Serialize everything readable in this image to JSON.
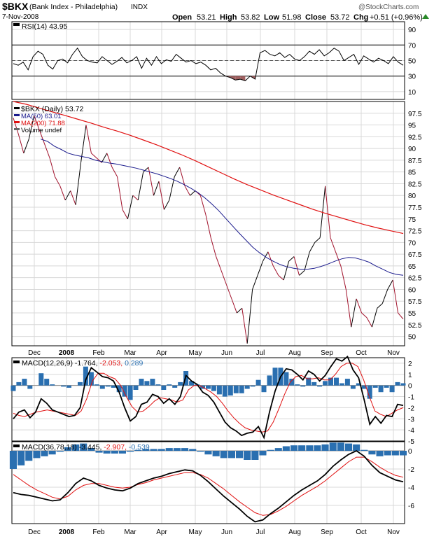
{
  "header": {
    "symbol": "$BKX",
    "name": "(Bank Index - Philadelphia)",
    "exchange": "INDX",
    "date": "7-Nov-2008",
    "brand": "@StockCharts.com",
    "ohlc": {
      "open_label": "Open",
      "open": "53.21",
      "high_label": "High",
      "high": "53.82",
      "low_label": "Low",
      "low": "51.98",
      "close_label": "Close",
      "close": "53.72",
      "chg_label": "Chg",
      "chg": "+0.51 (+0.96%)"
    }
  },
  "colors": {
    "price": "#000000",
    "price_down": "#a0102a",
    "ma50": "#1a1a8c",
    "ma200": "#e01010",
    "macd_signal": "#e01010",
    "histogram": "#2a6fb0",
    "rsi_fill": "#a06060",
    "grid": "#d8d8d8",
    "up_arrow": "#2a8a2a"
  },
  "x_axis": {
    "months": [
      "Dec",
      "2008",
      "Feb",
      "Mar",
      "Apr",
      "May",
      "Jun",
      "Jul",
      "Aug",
      "Sep",
      "Oct",
      "Nov"
    ]
  },
  "chart_data": [
    {
      "type": "line",
      "panel": "rsi",
      "legend": [
        "RSI(14) 43.95"
      ],
      "y_ticks": [
        10,
        30,
        50,
        70,
        90
      ],
      "ylim": [
        0,
        100
      ],
      "levels": [
        30,
        70
      ],
      "series": [
        {
          "name": "RSI(14)",
          "values": [
            46,
            44,
            48,
            38,
            55,
            62,
            58,
            44,
            39,
            50,
            52,
            47,
            58,
            66,
            55,
            50,
            48,
            47,
            55,
            50,
            45,
            49,
            54,
            47,
            50,
            55,
            40,
            53,
            44,
            55,
            46,
            51,
            49,
            58,
            53,
            48,
            50,
            46,
            48,
            44,
            38,
            40,
            34,
            30,
            28,
            25,
            26,
            24,
            30,
            26,
            60,
            63,
            58,
            56,
            60,
            54,
            58,
            52,
            50,
            55,
            62,
            58,
            64,
            56,
            60,
            66,
            62,
            50,
            54,
            58,
            45,
            56,
            52,
            48,
            53,
            50,
            46,
            55,
            48,
            44
          ]
        }
      ]
    },
    {
      "type": "line",
      "panel": "price",
      "legend": [
        "$BKX (Daily) 53.72",
        "MA(50) 63.01",
        "MA(200) 71.88",
        "Volume undef"
      ],
      "y_ticks": [
        50,
        52.5,
        55,
        57.5,
        60,
        62.5,
        65,
        67.5,
        70,
        72.5,
        75,
        77.5,
        80,
        82.5,
        85,
        87.5,
        90,
        92.5,
        95,
        97.5
      ],
      "ylim": [
        48,
        100
      ],
      "series": [
        {
          "name": "$BKX",
          "values": [
            96.5,
            93,
            89,
            92,
            97,
            94,
            91,
            88,
            84,
            82,
            79,
            81,
            78,
            87,
            95,
            89,
            88,
            87,
            89,
            86,
            84,
            77,
            75,
            80,
            79,
            85,
            86,
            80,
            83,
            77,
            79,
            84,
            86,
            82,
            80,
            81,
            80,
            76,
            71,
            67,
            64,
            61,
            58,
            55,
            56,
            48.5,
            60,
            63,
            66,
            68,
            65,
            63,
            62,
            66,
            67,
            63,
            64,
            68,
            70,
            71,
            82,
            71,
            68,
            65,
            60,
            52,
            58,
            55,
            54,
            52,
            56,
            57,
            60,
            62,
            55,
            53.7
          ]
        },
        {
          "name": "MA(50)",
          "values": [
            null,
            null,
            null,
            null,
            92,
            91.5,
            90.5,
            89.8,
            89,
            88.6,
            88.3,
            88,
            87.5,
            87.2,
            86.9,
            86.7,
            86.4,
            86.1,
            85.8,
            85.4,
            85,
            84.6,
            84.1,
            83.6,
            83,
            82.3,
            81.5,
            80.6,
            79.5,
            78.2,
            76.8,
            75.2,
            73.6,
            72,
            70.5,
            69,
            67.8,
            66.8,
            66,
            65.3,
            64.8,
            64.5,
            64.3,
            64.3,
            64.5,
            64.9,
            65.4,
            66,
            66.5,
            66.8,
            66.7,
            66.3,
            65.8,
            65,
            64.3,
            63.6,
            63.2,
            63
          ]
        },
        {
          "name": "MA(200)",
          "values": [
            100,
            99.4,
            98.6,
            97.8,
            97,
            96.2,
            95.4,
            94.5,
            93.7,
            92.8,
            91.8,
            90.8,
            89.7,
            88.6,
            87.4,
            86.1,
            84.8,
            83.5,
            82.3,
            81.2,
            80.1,
            79.1,
            78.1,
            77.1,
            76.2,
            75.4,
            74.6,
            73.8,
            73.1,
            72.5,
            71.9
          ]
        }
      ]
    },
    {
      "type": "line",
      "panel": "macd1",
      "legend": [
        "MACD(12,26,9)",
        "-1.764",
        "-2.053",
        "0.289"
      ],
      "y_ticks": [
        -5,
        -4,
        -3,
        -2,
        -1,
        0,
        1,
        2
      ],
      "ylim": [
        -5,
        2.5
      ],
      "series": [
        {
          "name": "MACD",
          "values": [
            -3,
            -2.4,
            -2.2,
            -2.9,
            -2.4,
            -1.2,
            -1.6,
            -2.2,
            -2.4,
            -2.6,
            -2.8,
            -2.7,
            -2,
            0.5,
            1.6,
            1.2,
            0.8,
            0.7,
            0.4,
            -0.6,
            -2,
            -3.2,
            -2.8,
            -1.7,
            -1.5,
            -0.8,
            -1,
            -1.6,
            -1.2,
            -1.7,
            -1,
            0.9,
            0.4,
            0.1,
            -0.6,
            -0.9,
            -1.5,
            -2.4,
            -3.3,
            -3.8,
            -4.1,
            -4.5,
            -4.3,
            -4.2,
            -3.7,
            -4.7,
            -2.4,
            -0.5,
            0.8,
            1.5,
            1.4,
            1,
            0.5,
            1.3,
            1,
            0.4,
            0.9,
            1.7,
            2.4,
            2.2,
            2.6,
            1.4,
            0.7,
            -1.3,
            -3.5,
            -2.8,
            -3.4,
            -2.7,
            -2.8,
            -1.7,
            -1.8
          ]
        },
        {
          "name": "Signal",
          "values": [
            -2.5,
            -2.7,
            -2.8,
            -2.6,
            -2.4,
            -2.3,
            -2.2,
            -2.3,
            -2.4,
            -2.5,
            -2.6,
            -2.7,
            -2.3,
            -1.2,
            0.4,
            1.1,
            1.1,
            0.8,
            0.6,
            0,
            -1,
            -1.9,
            -2.4,
            -2.3,
            -1.9,
            -1.4,
            -1.1,
            -1.2,
            -1.3,
            -1.5,
            -1.3,
            -0.4,
            0,
            0,
            -0.3,
            -0.6,
            -1,
            -1.6,
            -2.3,
            -2.9,
            -3.4,
            -3.8,
            -4,
            -4.1,
            -4.2,
            -4.1,
            -3.3,
            -2.1,
            -0.8,
            0.3,
            0.8,
            0.9,
            0.6,
            0.6,
            0.7,
            0.5,
            0.5,
            1,
            1.7,
            2,
            2,
            1.7,
            0.5,
            -1,
            -2.3,
            -2.6,
            -2.8,
            -2.5,
            -2.2,
            -2
          ]
        },
        {
          "name": "Histogram",
          "values": [
            -0.5,
            0.3,
            0.6,
            -0.3,
            0,
            1.1,
            0.6,
            0.1,
            0,
            -0.1,
            -0.2,
            0,
            0.3,
            1.7,
            1.2,
            0.1,
            -0.3,
            -0.1,
            -0.2,
            -0.6,
            -1,
            -1.3,
            -0.4,
            0.6,
            0.4,
            0.6,
            0.1,
            -0.4,
            0.1,
            -0.2,
            0.3,
            1.3,
            0.4,
            0.1,
            -0.3,
            -0.3,
            -0.5,
            -0.8,
            -1,
            -0.9,
            -0.7,
            -0.7,
            -0.3,
            -0.1,
            0.5,
            -0.6,
            0.9,
            1.6,
            1.6,
            1.2,
            0.6,
            0.1,
            -0.1,
            0.7,
            0.3,
            -0.1,
            0.4,
            0.7,
            0.7,
            0.2,
            0.6,
            -0.3,
            0.2,
            -0.3,
            -1.2,
            -0.2,
            -0.6,
            -0.2,
            -0.6,
            0.3,
            0.2
          ]
        }
      ]
    },
    {
      "type": "line",
      "panel": "macd2",
      "legend": [
        "MACD(36,78,18)",
        "-3.445",
        "-2.907",
        "-0.539"
      ],
      "y_ticks": [
        -6,
        -4,
        -2,
        0
      ],
      "ylim": [
        -8,
        1
      ],
      "series": [
        {
          "name": "MACD",
          "values": [
            -4.6,
            -4.8,
            -4.9,
            -5.1,
            -5.3,
            -5.5,
            -5.4,
            -4.6,
            -3.6,
            -3,
            -3.3,
            -3.8,
            -4.1,
            -4.3,
            -4.4,
            -4.1,
            -3.6,
            -3.3,
            -3,
            -2.8,
            -2.5,
            -2.3,
            -2.1,
            -2.2,
            -2.7,
            -3.4,
            -4.2,
            -5,
            -5.7,
            -6.4,
            -7.2,
            -7.8,
            -7.6,
            -6.9,
            -6.3,
            -5.6,
            -4.9,
            -4.3,
            -3.8,
            -3.3,
            -2.6,
            -1.7,
            -1,
            -0.4,
            0,
            -0.6,
            -1.6,
            -2.4,
            -2.8,
            -3.2,
            -3.4
          ]
        },
        {
          "name": "Signal",
          "values": [
            -2.6,
            -3.2,
            -3.8,
            -4.3,
            -4.7,
            -5.1,
            -5.3,
            -5,
            -4.3,
            -3.8,
            -3.6,
            -3.6,
            -3.8,
            -4,
            -4.1,
            -4,
            -3.7,
            -3.5,
            -3.2,
            -3,
            -2.8,
            -2.6,
            -2.4,
            -2.4,
            -2.6,
            -3,
            -3.6,
            -4.2,
            -4.9,
            -5.6,
            -6.2,
            -6.8,
            -7.1,
            -7,
            -6.6,
            -6.1,
            -5.5,
            -4.9,
            -4.4,
            -3.9,
            -3.3,
            -2.6,
            -1.9,
            -1.2,
            -0.7,
            -0.7,
            -1.2,
            -1.8,
            -2.3,
            -2.7,
            -2.9
          ]
        },
        {
          "name": "Histogram",
          "values": [
            -2,
            -1.6,
            -1.1,
            -0.8,
            -0.6,
            -0.4,
            -0.1,
            0.4,
            0.7,
            0.8,
            0.3,
            -0.2,
            -0.3,
            -0.3,
            -0.3,
            -0.1,
            0.1,
            0.2,
            0.2,
            0.2,
            0.3,
            0.3,
            0.3,
            0.2,
            -0.1,
            -0.4,
            -0.6,
            -0.8,
            -0.8,
            -0.8,
            -1,
            -1,
            -0.5,
            0.1,
            0.3,
            0.5,
            0.6,
            0.6,
            0.6,
            0.6,
            0.7,
            0.9,
            0.9,
            0.8,
            0.7,
            0.1,
            -0.4,
            -0.6,
            -0.5,
            -0.5,
            -0.5
          ]
        }
      ]
    }
  ]
}
